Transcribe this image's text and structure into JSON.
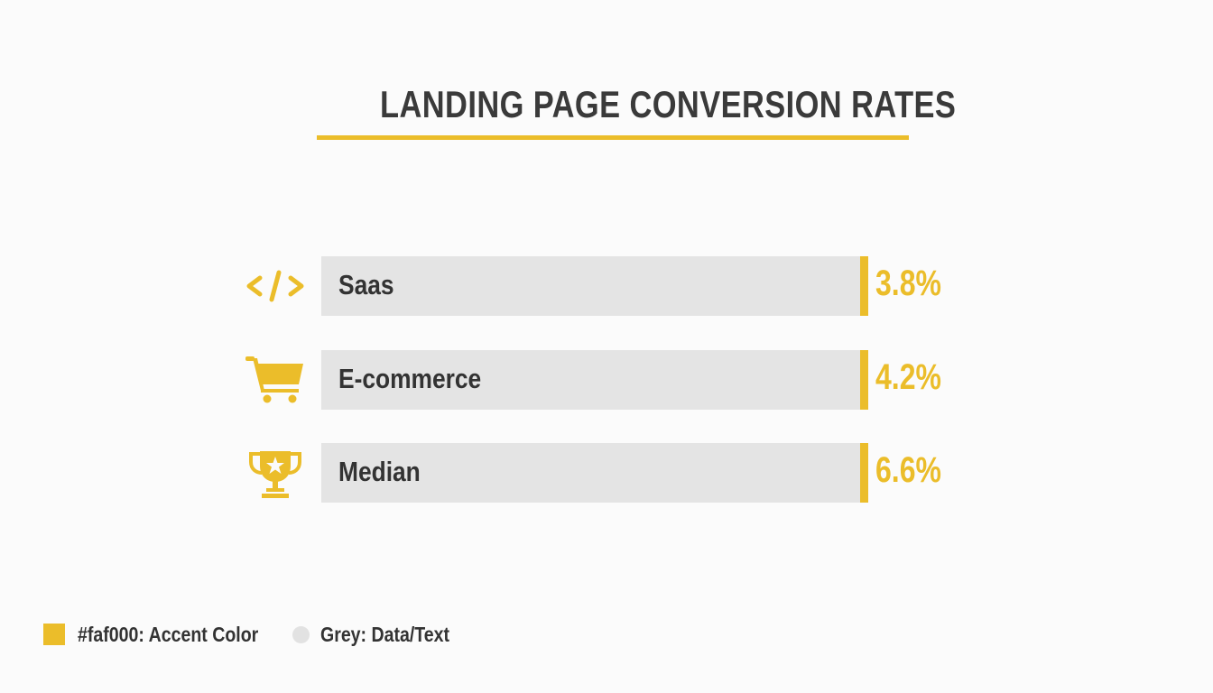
{
  "chart_data": {
    "type": "bar",
    "title": "LANDING PAGE CONVERSION RATES",
    "categories": [
      "Saas",
      "E-commerce",
      "Median"
    ],
    "values": [
      3.8,
      4.2,
      6.6
    ],
    "value_labels": [
      "3.8%",
      "4.2%",
      "6.6%"
    ],
    "icons": [
      "code-icon",
      "shopping-cart-icon",
      "trophy-icon"
    ],
    "xlabel": "",
    "ylabel": "",
    "legend": [
      {
        "label": "#faf000: Accent Color",
        "color": "#ebbd2a"
      },
      {
        "label": "Grey: Data/Text",
        "color": "#e2e2e2"
      }
    ]
  }
}
